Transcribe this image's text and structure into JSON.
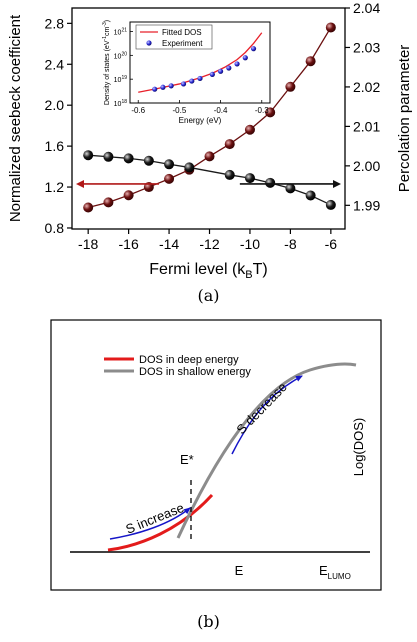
{
  "chart_data": [
    {
      "type": "scatter",
      "panel_label": "(a)",
      "xlabel_main": "Fermi level (k",
      "xlabel_sub": "B",
      "xlabel_end": "T)",
      "ylabel_left": "Normalized seebeck coefficient",
      "ylabel_right": "Percolation parameter",
      "xlim": [
        -18.8,
        -5.3
      ],
      "ylim_left": [
        0.79,
        2.95
      ],
      "ylim_right": [
        1.984,
        2.04
      ],
      "x_ticks": [
        -18,
        -16,
        -14,
        -12,
        -10,
        -8,
        -6
      ],
      "y_left_ticks": [
        "0.8",
        "1.2",
        "1.6",
        "2.0",
        "2.4",
        "2.8"
      ],
      "y_right_ticks": [
        "1.99",
        "2.00",
        "2.01",
        "2.02",
        "2.03",
        "2.04"
      ],
      "series": [
        {
          "axis": "left",
          "color": "#6b1010",
          "x": [
            -18,
            -17,
            -16,
            -15,
            -14,
            -13,
            -12,
            -11,
            -10,
            -9,
            -8,
            -7,
            -6
          ],
          "values": [
            1.0,
            1.05,
            1.12,
            1.2,
            1.28,
            1.37,
            1.5,
            1.62,
            1.76,
            1.93,
            2.18,
            2.43,
            2.76
          ]
        },
        {
          "axis": "right",
          "color": "#1a1a1a",
          "x": [
            -18,
            -17,
            -16,
            -15,
            -14,
            -13,
            -11,
            -10,
            -9,
            -8,
            -7,
            -6
          ],
          "values": [
            2.0027,
            2.0023,
            2.0019,
            2.0013,
            2.0004,
            1.9996,
            1.9977,
            1.9969,
            1.9957,
            1.9943,
            1.9925,
            1.9901
          ]
        }
      ],
      "inset": {
        "ylabel": "Density of states (eV",
        "ylabel_sup1": "-1",
        "ylabel_mid": "cm",
        "ylabel_sup2": "-3",
        "ylabel_end": ")",
        "xlabel": "Energy (eV)",
        "xlim": [
          -0.62,
          -0.28
        ],
        "ylim_log": [
          18,
          21.4
        ],
        "x_ticks": [
          "-0.6",
          "-0.5",
          "-0.4",
          "-0.3"
        ],
        "x_tick_values": [
          -0.6,
          -0.5,
          -0.4,
          -0.3
        ],
        "y_ticks_base": "10",
        "y_ticks_exp": [
          "18",
          "19",
          "20",
          "21"
        ],
        "legend": [
          "Fitted DOS",
          "Experiment"
        ],
        "fit_color": "#e8202a",
        "point_color": "#2b2bd9",
        "fit_x": [
          -0.6,
          -0.55,
          -0.5,
          -0.45,
          -0.42,
          -0.39,
          -0.36,
          -0.34,
          -0.32,
          -0.3
        ],
        "fit_log": [
          18.45,
          18.62,
          18.8,
          19.06,
          19.25,
          19.5,
          19.82,
          20.12,
          20.5,
          20.95
        ],
        "points_x": [
          -0.56,
          -0.54,
          -0.52,
          -0.49,
          -0.47,
          -0.45,
          -0.42,
          -0.4,
          -0.38,
          -0.36,
          -0.34,
          -0.32
        ],
        "points_log": [
          18.58,
          18.66,
          18.72,
          18.8,
          18.92,
          19.03,
          19.2,
          19.33,
          19.47,
          19.64,
          19.9,
          20.28
        ]
      }
    },
    {
      "type": "diagram",
      "panel_label": "(b)",
      "legend": [
        "DOS in deep energy",
        "DOS in shallow energy"
      ],
      "deep_color": "#e31b1b",
      "shallow_color": "#8c8c8c",
      "arrow_color": "#1515c8",
      "ylabel": "Log(DOS)",
      "xlabel": "E",
      "e_lumo_main": "E",
      "e_lumo_sub": "LUMO",
      "e_star": "E*",
      "s_increase": "S increase",
      "s_decrease": "S decrease"
    }
  ]
}
